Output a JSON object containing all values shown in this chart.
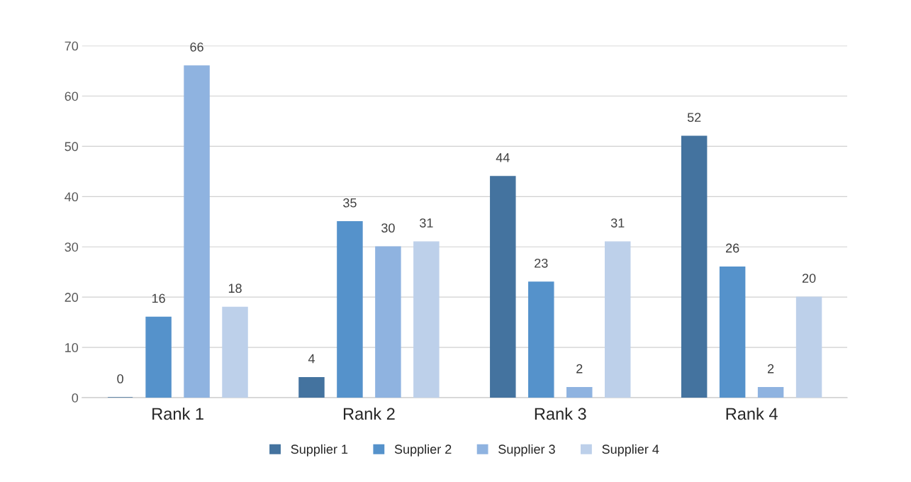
{
  "chart_data": {
    "type": "bar",
    "categories": [
      "Rank 1",
      "Rank 2",
      "Rank 3",
      "Rank 4"
    ],
    "series": [
      {
        "name": "Supplier 1",
        "color": "#44739f",
        "values": [
          0,
          4,
          44,
          52
        ]
      },
      {
        "name": "Supplier 2",
        "color": "#5592cb",
        "values": [
          16,
          35,
          23,
          26
        ]
      },
      {
        "name": "Supplier 3",
        "color": "#8fb3e0",
        "values": [
          66,
          30,
          2,
          2
        ]
      },
      {
        "name": "Supplier 4",
        "color": "#bdd0ea",
        "values": [
          18,
          31,
          31,
          20
        ]
      }
    ],
    "ylim": [
      0,
      70
    ],
    "yticks": [
      0,
      10,
      20,
      30,
      40,
      50,
      60,
      70
    ],
    "grid": "y",
    "legend": "bottom",
    "data_labels": true
  }
}
